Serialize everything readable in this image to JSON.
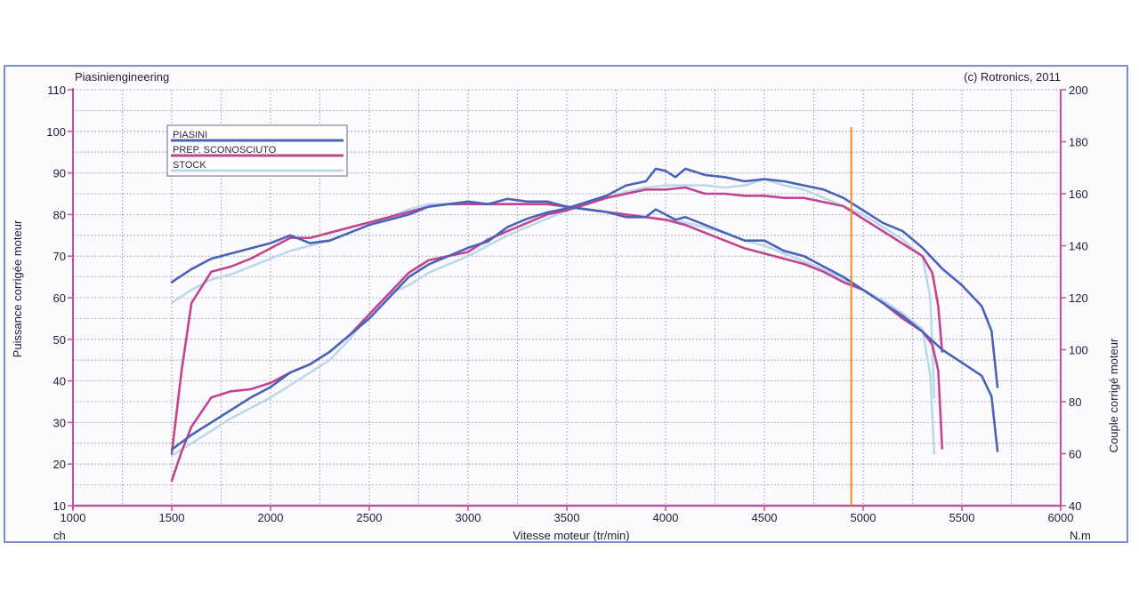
{
  "chart_data": {
    "type": "line",
    "header_left": "Piasiniengineering",
    "header_right": "(c) Rotronics, 2011",
    "xlabel": "Vitesse moteur (tr/min)",
    "ylabel_left": "Puissance corrigée moteur",
    "ylabel_right": "Couple corrigé moteur",
    "unit_left": "ch",
    "unit_right": "N.m",
    "xlim": [
      1000,
      6000
    ],
    "ylim_left": [
      10,
      110
    ],
    "ylim_right": [
      40,
      200
    ],
    "x_ticks": [
      1000,
      1500,
      2000,
      2500,
      3000,
      3500,
      4000,
      4500,
      5000,
      5500,
      6000
    ],
    "y_left_ticks": [
      10,
      20,
      30,
      40,
      50,
      60,
      70,
      80,
      90,
      100,
      110
    ],
    "y_right_ticks": [
      40,
      60,
      80,
      100,
      120,
      140,
      160,
      180,
      200
    ],
    "marker_x": 4940,
    "marker_color": "#f08a2c",
    "grid": true,
    "legend_position": "top-left",
    "legend": [
      "PIASINI",
      "PREP. SCONOSCIUTO",
      "STOCK"
    ],
    "series": [
      {
        "name": "PIASINI",
        "color": "#4a63b8",
        "power": {
          "x": [
            1500,
            1600,
            1700,
            1800,
            1900,
            2000,
            2100,
            2200,
            2300,
            2400,
            2500,
            2600,
            2700,
            2800,
            2900,
            3000,
            3100,
            3200,
            3300,
            3400,
            3500,
            3600,
            3700,
            3800,
            3900,
            3950,
            4000,
            4050,
            4100,
            4200,
            4300,
            4400,
            4500,
            4600,
            4700,
            4800,
            4900,
            5000,
            5100,
            5200,
            5300,
            5400,
            5500,
            5600,
            5650,
            5680
          ],
          "y": [
            23.5,
            27,
            30,
            33,
            36,
            38.5,
            42,
            44,
            47,
            51,
            55,
            60,
            65,
            68,
            70,
            72,
            73.5,
            77,
            79,
            80.5,
            81.5,
            83,
            84.5,
            87,
            88,
            91,
            90.5,
            89,
            91,
            89.5,
            89,
            88,
            88.5,
            88,
            87,
            86,
            84,
            81,
            78,
            76,
            72,
            67,
            63,
            58,
            52,
            38.5
          ]
        },
        "torque": {
          "x": [
            1500,
            1600,
            1700,
            1800,
            1900,
            2000,
            2100,
            2200,
            2300,
            2400,
            2500,
            2600,
            2700,
            2800,
            2900,
            3000,
            3100,
            3200,
            3300,
            3400,
            3500,
            3600,
            3700,
            3800,
            3900,
            3950,
            4000,
            4050,
            4100,
            4200,
            4300,
            4400,
            4500,
            4600,
            4700,
            4800,
            4900,
            5000,
            5100,
            5200,
            5300,
            5400,
            5500,
            5600,
            5650,
            5680
          ],
          "y": [
            126,
            131,
            135,
            137,
            139,
            141,
            144,
            141,
            142,
            145,
            148,
            150,
            152,
            155,
            156,
            157,
            156,
            158,
            157,
            157,
            155,
            154,
            153,
            151,
            151,
            154,
            152,
            150,
            151,
            148,
            145,
            142,
            142,
            138,
            136,
            132,
            128,
            123,
            118,
            113,
            107,
            100,
            95,
            90,
            82,
            61
          ]
        }
      },
      {
        "name": "PREP. SCONOSCIUTO",
        "color": "#c2448f",
        "power": {
          "x": [
            1500,
            1550,
            1600,
            1700,
            1800,
            1900,
            2000,
            2100,
            2200,
            2300,
            2400,
            2500,
            2600,
            2700,
            2800,
            2900,
            3000,
            3100,
            3200,
            3300,
            3400,
            3500,
            3600,
            3700,
            3800,
            3900,
            4000,
            4100,
            4200,
            4300,
            4400,
            4500,
            4600,
            4700,
            4800,
            4900,
            5000,
            5100,
            5200,
            5300,
            5350,
            5380,
            5400
          ],
          "y": [
            16,
            23,
            29,
            36,
            37.5,
            38,
            39.5,
            42,
            44,
            47,
            51,
            56,
            61,
            66,
            69,
            70,
            71,
            74,
            76,
            78,
            80,
            81,
            82.5,
            84,
            85,
            86,
            86,
            86.5,
            85,
            85,
            84.5,
            84.5,
            84,
            84,
            83,
            82,
            79,
            76,
            73,
            70,
            66,
            58,
            47
          ]
        },
        "torque": {
          "x": [
            1500,
            1550,
            1600,
            1700,
            1800,
            1900,
            2000,
            2100,
            2200,
            2300,
            2400,
            2500,
            2600,
            2700,
            2800,
            2900,
            3000,
            3100,
            3200,
            3300,
            3400,
            3500,
            3600,
            3700,
            3800,
            3900,
            4000,
            4100,
            4200,
            4300,
            4400,
            4500,
            4600,
            4700,
            4800,
            4900,
            5000,
            5100,
            5200,
            5300,
            5350,
            5380,
            5400
          ],
          "y": [
            60,
            92,
            118,
            130,
            132,
            135,
            139,
            143,
            143,
            145,
            147,
            149,
            151,
            153,
            155,
            156,
            156,
            156,
            156,
            156,
            156,
            155,
            154,
            153,
            152,
            151,
            150,
            148,
            145,
            142,
            139,
            137,
            135,
            133,
            130,
            126,
            123,
            118,
            112,
            107,
            102,
            92,
            62
          ]
        }
      },
      {
        "name": "STOCK",
        "color": "#bcd9ec",
        "power": {
          "x": [
            1500,
            1600,
            1700,
            1800,
            1900,
            2000,
            2100,
            2200,
            2300,
            2400,
            2500,
            2600,
            2700,
            2800,
            2900,
            3000,
            3100,
            3200,
            3300,
            3400,
            3500,
            3600,
            3700,
            3800,
            3900,
            4000,
            4100,
            4200,
            4300,
            4400,
            4500,
            4600,
            4700,
            4800,
            4900,
            5000,
            5100,
            5200,
            5300,
            5340,
            5360
          ],
          "y": [
            22,
            25,
            28,
            31,
            33.5,
            36,
            39,
            42,
            45,
            50,
            56,
            61,
            63,
            66,
            68,
            70,
            72.5,
            75,
            77,
            79,
            81,
            82.5,
            84,
            85.5,
            86.5,
            87,
            87,
            87,
            86.5,
            87,
            88.5,
            87,
            86,
            84,
            82,
            80,
            77,
            74,
            70,
            60,
            36
          ]
        },
        "torque": {
          "x": [
            1500,
            1600,
            1700,
            1800,
            1900,
            2000,
            2100,
            2200,
            2300,
            2400,
            2500,
            2600,
            2700,
            2800,
            2900,
            3000,
            3100,
            3200,
            3300,
            3400,
            3500,
            3600,
            3700,
            3800,
            3900,
            4000,
            4100,
            4200,
            4300,
            4400,
            4500,
            4600,
            4700,
            4800,
            4900,
            5000,
            5100,
            5200,
            5300,
            5340,
            5360
          ],
          "y": [
            118,
            123,
            127,
            129,
            132,
            135,
            138,
            140,
            142,
            145,
            148,
            151,
            154,
            156,
            156,
            156,
            156,
            156,
            156,
            156,
            155,
            154,
            153,
            152,
            151,
            150,
            149,
            147,
            145,
            142,
            140,
            137,
            134,
            131,
            127,
            123,
            119,
            114,
            108,
            90,
            60
          ]
        }
      }
    ]
  }
}
